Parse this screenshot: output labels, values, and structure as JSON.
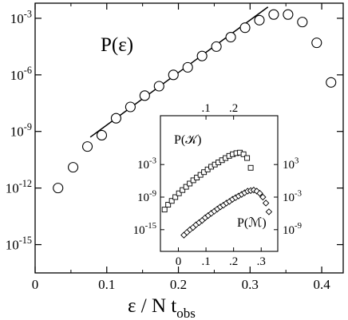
{
  "chart_data": [
    {
      "type": "scatter",
      "title": "",
      "annotation": "P(ε)",
      "xlabel": "ε / N t",
      "xlabel_sub": "obs",
      "ylabel": "",
      "xlim": [
        0,
        0.43
      ],
      "ylim_log10": [
        -16.5,
        -2.2
      ],
      "y_scale": "log",
      "x_ticks": [
        0,
        0.1,
        0.2,
        0.3,
        0.4
      ],
      "x_tick_labels": [
        "0",
        "0.1",
        "0.2",
        "0.3",
        "0.4"
      ],
      "y_ticks_log10": [
        -3,
        -6,
        -9,
        -12,
        -15
      ],
      "y_tick_labels": [
        {
          "base": "10",
          "exp": "-3"
        },
        {
          "base": "10",
          "exp": "-6"
        },
        {
          "base": "10",
          "exp": "-9"
        },
        {
          "base": "10",
          "exp": "-12"
        },
        {
          "base": "10",
          "exp": "-15"
        }
      ],
      "grid": false,
      "series": [
        {
          "marker": "circle",
          "x": [
            0.032,
            0.053,
            0.073,
            0.093,
            0.113,
            0.133,
            0.153,
            0.173,
            0.193,
            0.213,
            0.233,
            0.253,
            0.273,
            0.293,
            0.313,
            0.333,
            0.353,
            0.373,
            0.393,
            0.413
          ],
          "y_log10": [
            -12.0,
            -10.9,
            -9.8,
            -9.2,
            -8.3,
            -7.7,
            -7.1,
            -6.6,
            -6.0,
            -5.6,
            -5.0,
            -4.5,
            -4.0,
            -3.5,
            -3.1,
            -2.8,
            -2.8,
            -3.2,
            -4.3,
            -6.4
          ]
        }
      ],
      "fit_line": {
        "x": [
          0.077,
          0.325
        ],
        "y_log10": [
          -9.3,
          -2.4
        ]
      }
    },
    {
      "type": "scatter",
      "inset": true,
      "title": "",
      "xlim": [
        -0.065,
        0.36
      ],
      "y_scale": "log",
      "bottom_x_tick_labels": [
        {
          "x": 0.0,
          "label": "0"
        },
        {
          "x": 0.1,
          "label": ".1"
        },
        {
          "x": 0.2,
          "label": ".2"
        },
        {
          "x": 0.3,
          "label": ".3"
        }
      ],
      "top_x_tick_labels": [
        {
          "x": 0.1,
          "label": ".1"
        },
        {
          "x": 0.2,
          "label": ".2"
        }
      ],
      "left_axis": {
        "ylim_log10": [
          -19,
          6
        ],
        "ticks_log10": [
          -3,
          -9,
          -15
        ],
        "tick_labels": [
          {
            "base": "10",
            "exp": "-3"
          },
          {
            "base": "10",
            "exp": "-9"
          },
          {
            "base": "10",
            "exp": "-15"
          }
        ]
      },
      "right_axis": {
        "ylim_log10": [
          -13,
          12
        ],
        "ticks_log10": [
          3,
          -3,
          -9
        ],
        "tick_labels": [
          {
            "base": "10",
            "exp": "3"
          },
          {
            "base": "10",
            "exp": "-3"
          },
          {
            "base": "10",
            "exp": "-9"
          }
        ]
      },
      "series": [
        {
          "name": "P(𝒦)",
          "marker": "square",
          "axis": "left",
          "x": [
            -0.05,
            -0.037,
            -0.024,
            -0.011,
            0.002,
            0.015,
            0.028,
            0.041,
            0.054,
            0.067,
            0.08,
            0.093,
            0.106,
            0.119,
            0.132,
            0.145,
            0.158,
            0.171,
            0.184,
            0.197,
            0.21,
            0.223,
            0.236,
            0.249,
            0.262
          ],
          "y_log10": [
            -11.3,
            -10.4,
            -9.7,
            -9.0,
            -8.3,
            -7.7,
            -7.1,
            -6.5,
            -5.9,
            -5.4,
            -4.9,
            -4.4,
            -3.9,
            -3.4,
            -3.0,
            -2.6,
            -2.2,
            -1.8,
            -1.4,
            -1.1,
            -0.9,
            -0.8,
            -1.1,
            -1.8,
            -3.6
          ]
        },
        {
          "name": "P(ℳ)",
          "marker": "diamond",
          "axis": "right",
          "x": [
            0.02,
            0.031,
            0.042,
            0.053,
            0.064,
            0.075,
            0.086,
            0.097,
            0.108,
            0.119,
            0.13,
            0.141,
            0.152,
            0.163,
            0.174,
            0.185,
            0.196,
            0.207,
            0.218,
            0.229,
            0.24,
            0.251,
            0.262,
            0.273,
            0.284,
            0.295,
            0.306,
            0.317,
            0.328
          ],
          "y_log10": [
            -10.0,
            -9.5,
            -9.0,
            -8.6,
            -8.1,
            -7.7,
            -7.3,
            -6.8,
            -6.4,
            -6.0,
            -5.6,
            -5.2,
            -4.8,
            -4.5,
            -4.1,
            -3.8,
            -3.4,
            -3.1,
            -2.8,
            -2.5,
            -2.2,
            -1.9,
            -1.8,
            -1.7,
            -1.9,
            -2.3,
            -3.0,
            -4.1,
            -5.7
          ]
        }
      ]
    }
  ]
}
